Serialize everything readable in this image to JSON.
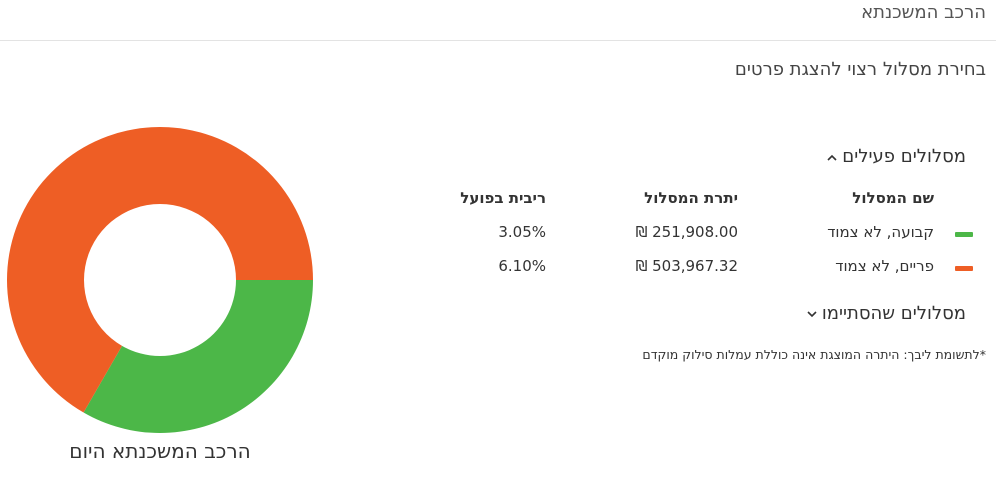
{
  "header": {
    "title": "הרכב המשכנתא"
  },
  "subtitle": "בחירת מסלול רצוי להצגת פרטים",
  "active_tracks": {
    "label": "מסלולים פעילים",
    "expanded": true,
    "columns": {
      "name": "שם המסלול",
      "balance": "יתרת המסלול",
      "rate": "ריבית בפועל"
    },
    "rows": [
      {
        "name": "קבועה, לא צמוד",
        "balance": "₪ 251,908.00",
        "rate": "3.05%",
        "color": "#4cb748"
      },
      {
        "name": "פריים, לא צמוד",
        "balance": "₪ 503,967.32",
        "rate": "6.10%",
        "color": "#ee5e25"
      }
    ]
  },
  "ended_tracks": {
    "label": "מסלולים שהסתיימו",
    "expanded": false
  },
  "footnote": "*לתשומת ליבך: היתרה המוצגת אינה כוללת עמלות סילוק מוקדם",
  "chart_data": {
    "type": "pie",
    "title": "הרכב המשכנתא היום",
    "categories": [
      "קבועה, לא צמוד",
      "פריים, לא צמוד"
    ],
    "values": [
      251908.0,
      503967.32
    ],
    "colors": [
      "#4cb748",
      "#ee5e25"
    ]
  }
}
